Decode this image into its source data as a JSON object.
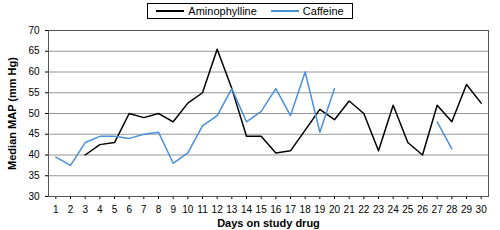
{
  "chart_data": {
    "type": "line",
    "xlabel": "Days on study drug",
    "ylabel": "Median MAP (mm Hg)",
    "x": [
      1,
      2,
      3,
      4,
      5,
      6,
      7,
      8,
      9,
      10,
      11,
      12,
      13,
      14,
      15,
      16,
      17,
      18,
      19,
      20,
      21,
      22,
      23,
      24,
      25,
      26,
      27,
      28,
      29,
      30
    ],
    "series": [
      {
        "name": "Aminophylline",
        "color": "#000000",
        "values": [
          null,
          null,
          40,
          42.5,
          43,
          50,
          49,
          50,
          48,
          52.5,
          55,
          65.5,
          56,
          44.5,
          44.5,
          40.5,
          41,
          46,
          51,
          48.5,
          53,
          50,
          41,
          52,
          43,
          40,
          52,
          48,
          57,
          52.5
        ]
      },
      {
        "name": "Caffeine",
        "color": "#4a90d9",
        "values": [
          39.5,
          37.5,
          43,
          44.5,
          44.5,
          44,
          45,
          45.5,
          38,
          40.5,
          47,
          49.5,
          56,
          48,
          50.5,
          56,
          49.5,
          60,
          45.5,
          56,
          null,
          null,
          null,
          null,
          null,
          null,
          48,
          41.5,
          null,
          null
        ]
      }
    ],
    "xlim": [
      0.5,
      30.5
    ],
    "xticks": [
      1,
      2,
      3,
      4,
      5,
      6,
      7,
      8,
      9,
      10,
      11,
      12,
      13,
      14,
      15,
      16,
      17,
      18,
      19,
      20,
      21,
      22,
      23,
      24,
      25,
      26,
      27,
      28,
      29,
      30
    ],
    "ylim": [
      30,
      70
    ],
    "yticks": [
      30,
      35,
      40,
      45,
      50,
      55,
      60,
      65,
      70
    ],
    "grid": true,
    "legend": "top"
  }
}
